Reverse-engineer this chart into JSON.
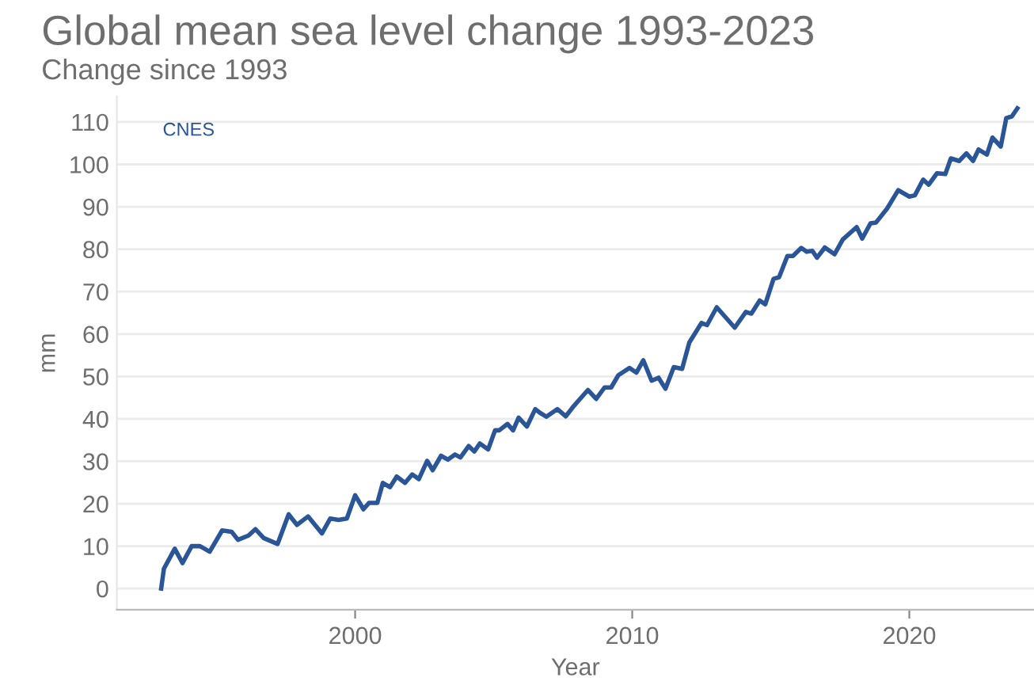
{
  "chart_data": {
    "type": "line",
    "title": "Global mean sea level change 1993-2023",
    "subtitle": "Change since 1993",
    "xlabel": "Year",
    "ylabel": "mm",
    "annotations": [
      "CNES"
    ],
    "x": [
      1993.0,
      1993.1,
      1993.49,
      1993.77,
      1994.1,
      1994.4,
      1994.75,
      1995.2,
      1995.54,
      1995.77,
      1996.15,
      1996.4,
      1996.7,
      1997.2,
      1997.6,
      1997.9,
      1998.3,
      1998.8,
      1999.1,
      1999.4,
      1999.7,
      2000.0,
      2000.3,
      2000.5,
      2000.8,
      2001.0,
      2001.26,
      2001.5,
      2001.8,
      2002.06,
      2002.3,
      2002.6,
      2002.8,
      2003.1,
      2003.35,
      2003.6,
      2003.8,
      2004.1,
      2004.3,
      2004.5,
      2004.8,
      2005.05,
      2005.2,
      2005.5,
      2005.7,
      2005.9,
      2006.2,
      2006.5,
      2006.7,
      2006.9,
      2007.3,
      2007.6,
      2007.9,
      2008.4,
      2008.7,
      2009.0,
      2009.24,
      2009.5,
      2009.9,
      2010.15,
      2010.4,
      2010.7,
      2010.95,
      2011.2,
      2011.5,
      2011.8,
      2012.06,
      2012.5,
      2012.7,
      2013.05,
      2013.7,
      2014.1,
      2014.3,
      2014.6,
      2014.8,
      2015.1,
      2015.3,
      2015.6,
      2015.8,
      2016.1,
      2016.3,
      2016.5,
      2016.67,
      2016.95,
      2017.3,
      2017.6,
      2018.1,
      2018.3,
      2018.6,
      2018.8,
      2019.2,
      2019.6,
      2020.0,
      2020.2,
      2020.5,
      2020.7,
      2021.0,
      2021.3,
      2021.5,
      2021.8,
      2022.06,
      2022.3,
      2022.5,
      2022.8,
      2023.0,
      2023.3,
      2023.5,
      2023.7,
      2023.9
    ],
    "series": [
      {
        "color": "#2a5597",
        "values": [
          0,
          4.7,
          9.4,
          6,
          10,
          10,
          8.7,
          13.7,
          13.4,
          11.5,
          12.5,
          14,
          11.9,
          10.5,
          17.5,
          15,
          17,
          13,
          16.5,
          16.2,
          16.5,
          22,
          18.7,
          20.2,
          20.2,
          24.9,
          23.9,
          26.4,
          24.9,
          26.9,
          25.8,
          30.1,
          27.9,
          31.3,
          30.4,
          31.6,
          30.9,
          33.6,
          32.3,
          34.2,
          32.8,
          37.3,
          37.3,
          38.8,
          37.3,
          40.3,
          38.2,
          42.3,
          41.3,
          40.5,
          42.3,
          40.6,
          43.1,
          46.8,
          44.7,
          47.4,
          47.4,
          50.3,
          52,
          50.9,
          53.8,
          49,
          49.7,
          47.1,
          52.2,
          51.8,
          58,
          62.6,
          62.1,
          66.3,
          61.5,
          65.2,
          64.8,
          67.9,
          67,
          73,
          73.4,
          78.4,
          78.4,
          80.3,
          79.4,
          79.6,
          78,
          80.4,
          78.8,
          82.3,
          85.2,
          82.5,
          86.1,
          86.3,
          89.6,
          93.9,
          92.4,
          92.7,
          96.4,
          95.2,
          97.9,
          97.7,
          101.4,
          100.8,
          102.6,
          100.8,
          103.5,
          102.3,
          106.3,
          104.2,
          110.9,
          111.3,
          113.2
        ]
      }
    ],
    "xlim": [
      1991.4,
      2024.5
    ],
    "xticks": [
      2000,
      2010,
      2020
    ],
    "ylim": [
      -5,
      116
    ],
    "yticks": [
      0,
      10,
      20,
      30,
      40,
      50,
      60,
      70,
      80,
      90,
      100,
      110
    ],
    "grid": "y",
    "legend": false,
    "marker": "none",
    "line_style": "solid"
  }
}
